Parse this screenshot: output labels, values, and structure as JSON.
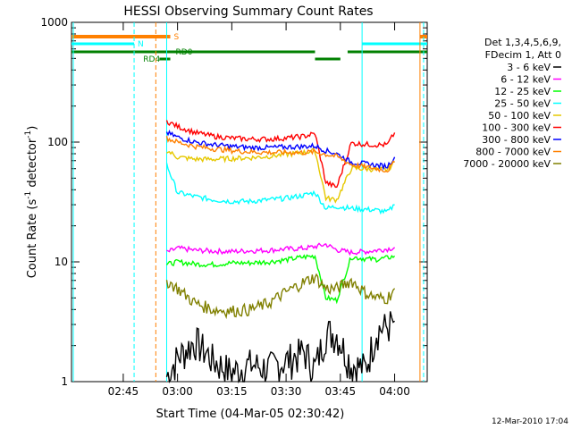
{
  "chart_data": {
    "type": "line",
    "title": "HESSI Observing Summary Count Rates",
    "xlabel": "Start Time (04-Mar-05 02:30:42)",
    "ylabel": "Count Rate (s",
    "ylabel_sup": "-1",
    "ylabel_tail": " detector",
    "ylabel_sup2": "-1",
    "ylabel_close": ")",
    "y_scale": "log",
    "ylim": [
      1,
      1000
    ],
    "xlim": [
      "02:30:42",
      "04:09:00"
    ],
    "x_ticks": [
      "02:45",
      "03:00",
      "03:15",
      "03:30",
      "03:45",
      "04:00"
    ],
    "y_ticks": [
      "1",
      "10",
      "100",
      "1000"
    ],
    "grid": false,
    "legend": {
      "placement": "right",
      "header": [
        "Det 1,3,4,5,6,9,",
        "FDecim 1, Att 0"
      ]
    },
    "series": [
      {
        "name": "3 - 6 keV",
        "color": "#000000",
        "values": [
          1.1,
          1.6,
          2.2,
          1.5,
          1.2,
          1.4,
          1.3,
          1.5,
          1.8,
          1.3,
          2.6,
          2.5,
          1.4,
          1.3,
          2.7,
          2.9,
          3.2
        ]
      },
      {
        "name": "6 - 12 keV",
        "color": "#ff00ff",
        "values": [
          12,
          13,
          12.5,
          12.3,
          12.2,
          12.4,
          12.5,
          12.8,
          13,
          13.4,
          14,
          12.6,
          12,
          12.2,
          12.5,
          12.8,
          13.2
        ]
      },
      {
        "name": "12 - 25 keV",
        "color": "#00ff00",
        "values": [
          9.5,
          10,
          9.6,
          9.5,
          9.8,
          9.8,
          10,
          10.4,
          11,
          11.2,
          5,
          4.8,
          11,
          10.6,
          10.5,
          10.8,
          11.2
        ]
      },
      {
        "name": "25 - 50 keV",
        "color": "#00ffff",
        "values": [
          65,
          38,
          35,
          33,
          32,
          32,
          33,
          34,
          36,
          38,
          28,
          29,
          28,
          27.5,
          27,
          26,
          30
        ]
      },
      {
        "name": "50 - 100 keV",
        "color": "#e6c800",
        "values": [
          85,
          75,
          72,
          72,
          73,
          74,
          76,
          79,
          82,
          85,
          34,
          33,
          60,
          60,
          59,
          59,
          68
        ]
      },
      {
        "name": "100 - 300 keV",
        "color": "#ff0000",
        "values": [
          150,
          135,
          120,
          112,
          108,
          106,
          106,
          108,
          112,
          118,
          46,
          42,
          98,
          96,
          95,
          95,
          120
        ]
      },
      {
        "name": "300 - 800 keV",
        "color": "#0000ff",
        "values": [
          120,
          110,
          100,
          95,
          92,
          90,
          90,
          91,
          92,
          93,
          85,
          80,
          68,
          66,
          64,
          63,
          75
        ]
      },
      {
        "name": "800 - 7000 keV",
        "color": "#ff8000",
        "values": [
          108,
          100,
          92,
          88,
          85,
          83,
          82,
          82,
          82,
          83,
          79,
          76,
          65,
          62,
          60,
          58,
          68
        ]
      },
      {
        "name": "7000 - 20000 keV",
        "color": "#808000",
        "values": [
          7,
          6,
          4.5,
          4.0,
          3.9,
          4.0,
          4.5,
          5.6,
          6.8,
          7.5,
          6,
          6,
          7,
          5.5,
          5,
          5,
          6
        ]
      }
    ],
    "x": [
      "02:57",
      "03:00",
      "03:05",
      "03:10",
      "03:15",
      "03:20",
      "03:25",
      "03:30",
      "03:35",
      "03:38",
      "03:41",
      "03:44",
      "03:48",
      "03:52",
      "03:55",
      "03:58",
      "04:00"
    ],
    "annotations": {
      "s_label": "S",
      "n_label": "N",
      "rd0_label": "RD0",
      "rd4_label": "RD4"
    },
    "footer_date": "12-Mar-2010 17:04"
  }
}
